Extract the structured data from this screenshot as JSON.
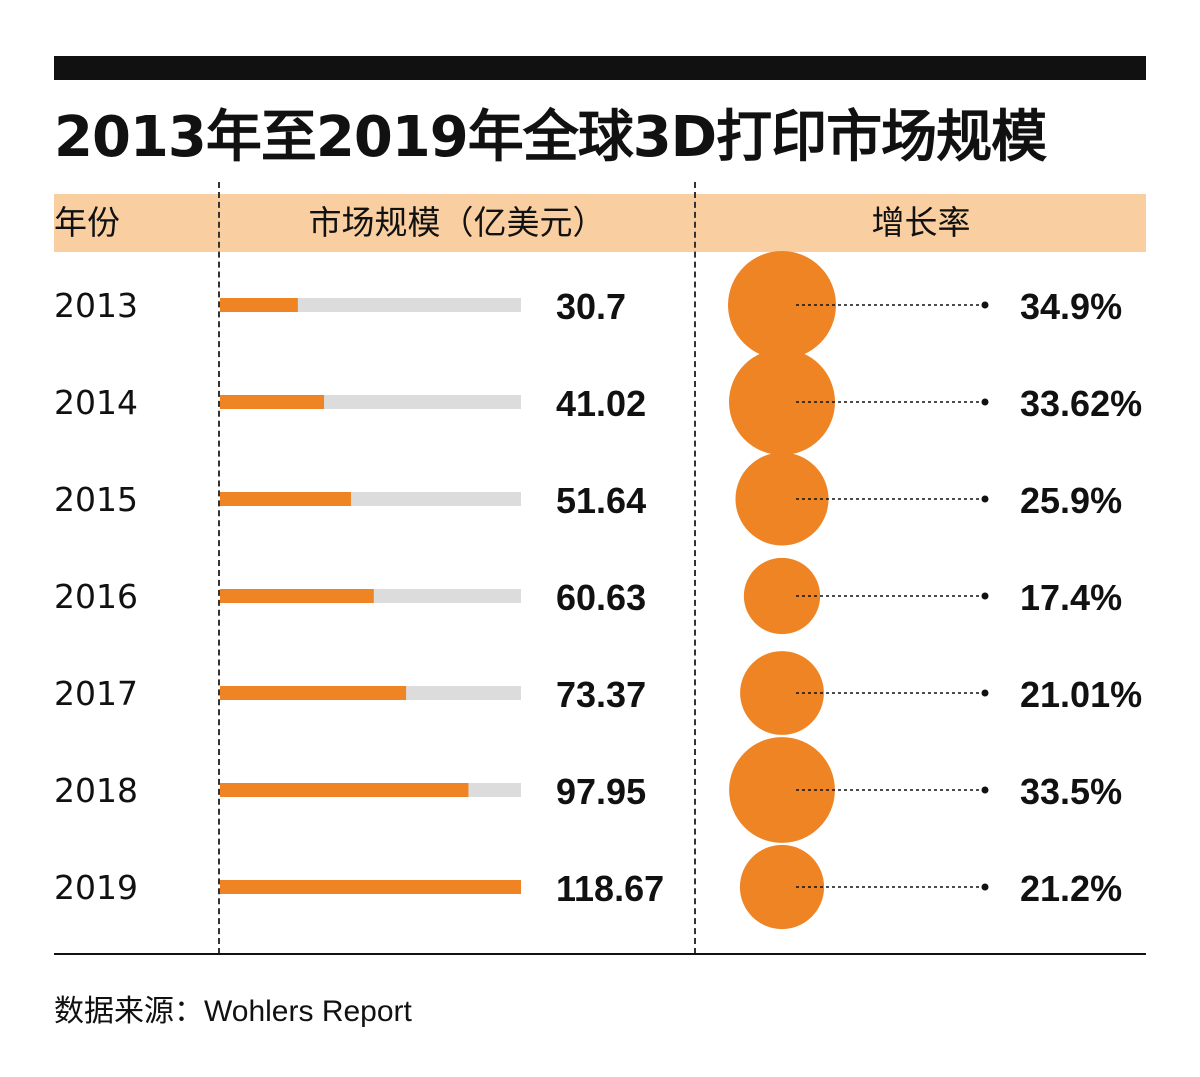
{
  "title": "2013年至2019年全球3D打印市场规模",
  "header": {
    "year": "年份",
    "market_size": "市场规模（亿美元）",
    "growth": "增长率"
  },
  "source": "数据来源：Wohlers Report",
  "colors": {
    "bar": "#ef8424",
    "bar_track": "#dcdcdc",
    "bubble": "#ef8424",
    "bubble_overlap": "#e24414",
    "header_band": "#f9cfa1",
    "text": "#111111"
  },
  "chart_data": {
    "type": "bar",
    "categories": [
      "2013",
      "2014",
      "2015",
      "2016",
      "2017",
      "2018",
      "2019"
    ],
    "series": [
      {
        "values": [
          30.7,
          41.02,
          51.64,
          60.63,
          73.37,
          97.95,
          118.67
        ],
        "labels": [
          "30.7",
          "41.02",
          "51.64",
          "60.63",
          "73.37",
          "97.95",
          "118.67"
        ]
      },
      {
        "values": [
          34.9,
          33.62,
          25.9,
          17.4,
          21.01,
          33.5,
          21.2
        ],
        "labels": [
          "34.9%",
          "33.62%",
          "25.9%",
          "17.4%",
          "21.01%",
          "33.5%",
          "21.2%"
        ]
      }
    ],
    "xlim": [
      0,
      118.67
    ],
    "title": "2013年至2019年全球3D打印市场规模"
  }
}
